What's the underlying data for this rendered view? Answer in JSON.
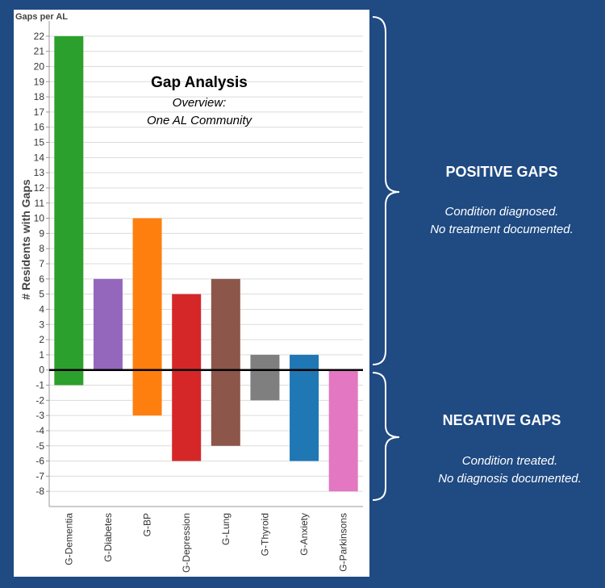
{
  "chart_data": {
    "type": "bar",
    "caption": "Gaps per AL",
    "title": "Gap Analysis",
    "subtitle_lines": [
      "Overview:",
      "One AL Community"
    ],
    "ylabel": "# Residents with Gaps",
    "xlabel": "",
    "ylim": [
      -9,
      23
    ],
    "ytick_min": -8,
    "ytick_max": 22,
    "grid": true,
    "categories": [
      "G-Dementia",
      "G-Diabetes",
      "G-BP",
      "G-Depression",
      "G-Lung",
      "G-Thyroid",
      "G-Anxiety",
      "G-Parkinsons"
    ],
    "series": [
      {
        "values": [
          22,
          6,
          10,
          5,
          6,
          1,
          1,
          0
        ]
      },
      {
        "values": [
          -1,
          0,
          -3,
          -6,
          -5,
          -2,
          -6,
          -8
        ]
      }
    ],
    "colors": [
      "#2ca02c",
      "#9467bd",
      "#ff7f0e",
      "#d62728",
      "#8c564b",
      "#7f7f7f",
      "#1f77b4",
      "#e377c2"
    ]
  },
  "annotations": {
    "positive": {
      "heading": "POSITIVE GAPS",
      "lines": [
        "Condition diagnosed.",
        "No treatment documented."
      ]
    },
    "negative": {
      "heading": "NEGATIVE GAPS",
      "lines": [
        "Condition treated.",
        "No diagnosis documented."
      ]
    }
  },
  "colors": {
    "background": "#1f4a82",
    "panel": "#ffffff",
    "annotation_text": "#ffffff"
  }
}
